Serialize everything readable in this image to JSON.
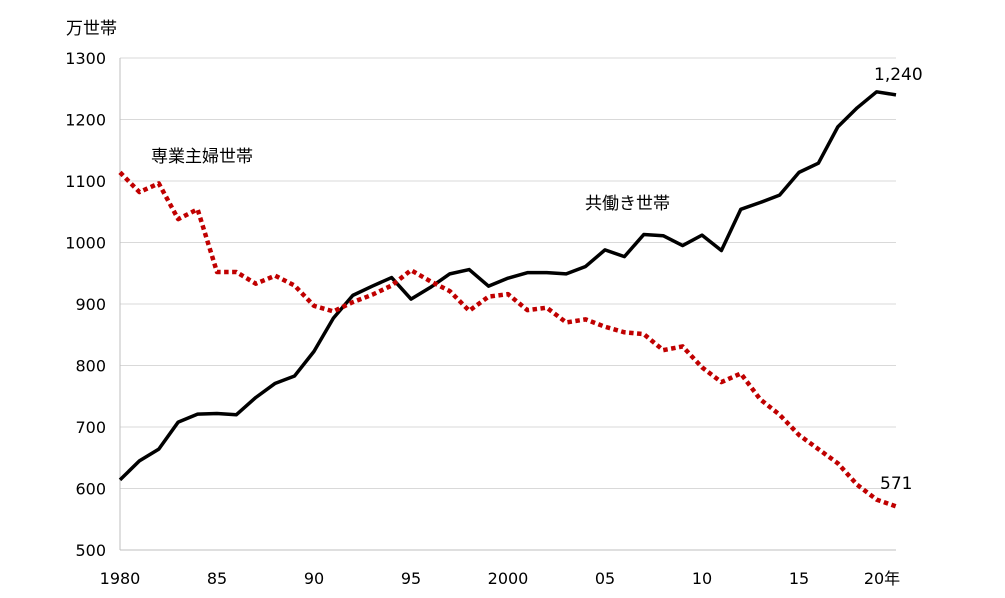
{
  "chart_data": {
    "type": "line",
    "ylabel": "万世帯",
    "ylim": [
      500,
      1300
    ],
    "yticks": [
      500,
      600,
      700,
      800,
      900,
      1000,
      1100,
      1200,
      1300
    ],
    "xlim": [
      1980,
      2020
    ],
    "xticks": [
      {
        "x": 1980,
        "label": "1980"
      },
      {
        "x": 1985,
        "label": "85"
      },
      {
        "x": 1990,
        "label": "90"
      },
      {
        "x": 1995,
        "label": "95"
      },
      {
        "x": 2000,
        "label": "2000"
      },
      {
        "x": 2005,
        "label": "05"
      },
      {
        "x": 2010,
        "label": "10"
      },
      {
        "x": 2015,
        "label": "15"
      },
      {
        "x": 2020,
        "label": "20年"
      }
    ],
    "grid": true,
    "x": [
      1980,
      1981,
      1982,
      1983,
      1984,
      1985,
      1986,
      1987,
      1988,
      1989,
      1990,
      1991,
      1992,
      1993,
      1994,
      1995,
      1996,
      1997,
      1998,
      1999,
      2000,
      2001,
      2002,
      2003,
      2004,
      2005,
      2006,
      2007,
      2008,
      2009,
      2010,
      2011,
      2012,
      2013,
      2014,
      2015,
      2016,
      2017,
      2018,
      2019,
      2020
    ],
    "series": [
      {
        "name": "共働き世帯",
        "color": "#000000",
        "style": "solid",
        "values": [
          614,
          645,
          664,
          708,
          721,
          722,
          720,
          748,
          771,
          783,
          823,
          877,
          914,
          929,
          943,
          908,
          927,
          949,
          956,
          929,
          942,
          951,
          951,
          949,
          961,
          988,
          977,
          1013,
          1011,
          995,
          1012,
          987,
          1054,
          1065,
          1077,
          1114,
          1129,
          1188,
          1219,
          1245,
          1240
        ],
        "end_label": "1,240"
      },
      {
        "name": "専業主婦世帯",
        "color": "#c00000",
        "style": "dotted",
        "values": [
          1114,
          1082,
          1096,
          1038,
          1054,
          952,
          952,
          933,
          946,
          930,
          897,
          888,
          903,
          915,
          930,
          955,
          937,
          921,
          889,
          912,
          916,
          890,
          894,
          870,
          875,
          863,
          854,
          851,
          825,
          831,
          797,
          773,
          787,
          745,
          720,
          687,
          664,
          641,
          606,
          582,
          571
        ],
        "end_label": "571"
      }
    ]
  }
}
